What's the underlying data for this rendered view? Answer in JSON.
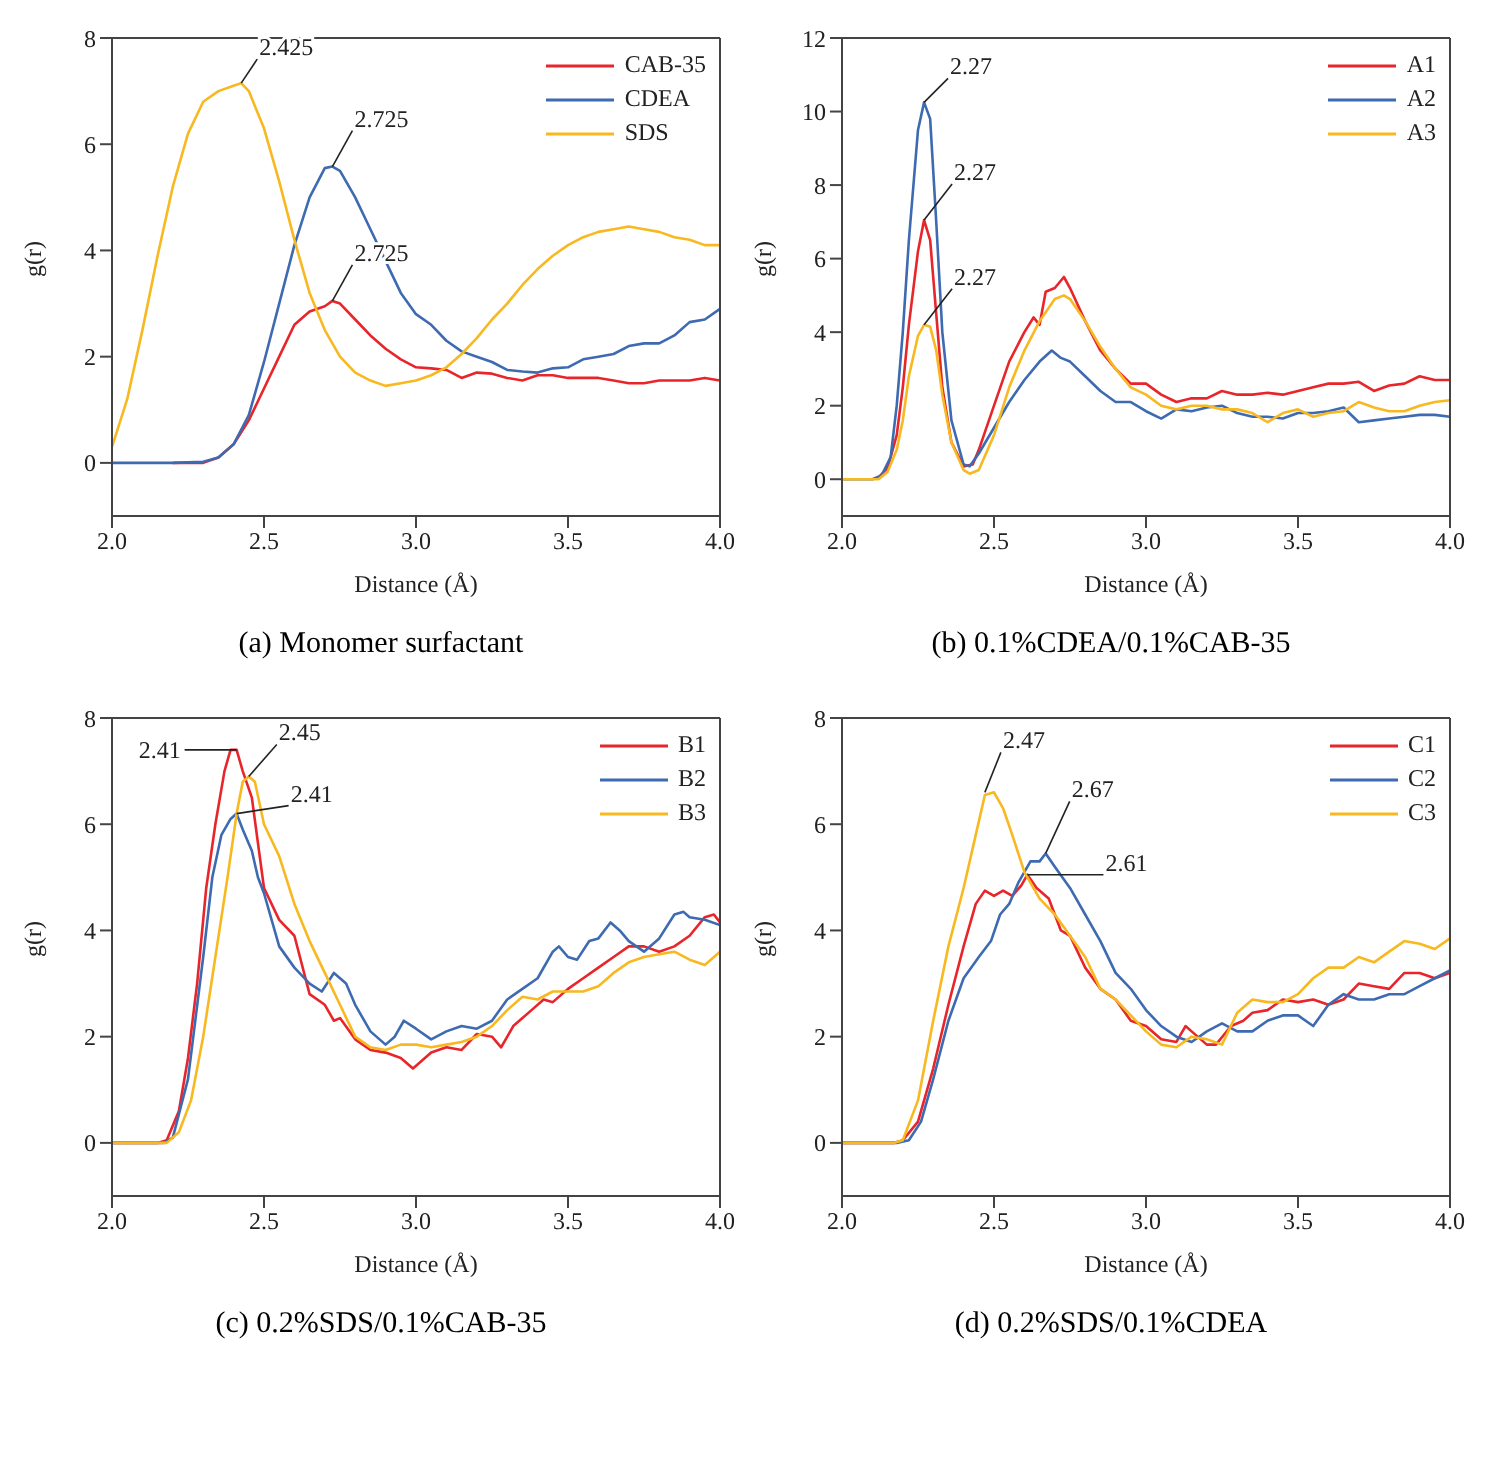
{
  "chart_data": [
    {
      "type": "line",
      "title": "(a) Monomer surfactant",
      "xlabel": "Distance (Å)",
      "ylabel": "g(r)",
      "xlim": [
        2.0,
        4.0
      ],
      "ylim": [
        -1,
        8
      ],
      "xticks": [
        {
          "value": 2,
          "label": "2.0"
        },
        {
          "value": 2.5,
          "label": "2.5"
        },
        {
          "value": 3,
          "label": "3.0"
        },
        {
          "value": 3.5,
          "label": "3.5"
        },
        {
          "value": 4,
          "label": "4.0"
        }
      ],
      "yticks": [
        0,
        2,
        4,
        6,
        8
      ],
      "legend": "top right",
      "marker": "none",
      "line_style": "solid",
      "annotations": [
        {
          "text": "2.425",
          "x": 2.425,
          "y": 7.15
        },
        {
          "text": "2.725",
          "x": 2.725,
          "y": 5.58
        },
        {
          "text": "2.725",
          "x": 2.725,
          "y": 3.05
        }
      ],
      "series": [
        {
          "name": "CAB-35",
          "color": "#e8252a",
          "x": [
            2.2,
            2.3,
            2.35,
            2.4,
            2.45,
            2.5,
            2.55,
            2.6,
            2.65,
            2.7,
            2.725,
            2.75,
            2.8,
            2.85,
            2.9,
            2.95,
            3.0,
            3.05,
            3.1,
            3.15,
            3.2,
            3.25,
            3.3,
            3.35,
            3.4,
            3.45,
            3.5,
            3.55,
            3.6,
            3.65,
            3.7,
            3.75,
            3.8,
            3.85,
            3.9,
            3.95,
            4.0
          ],
          "values": [
            0,
            0,
            0.1,
            0.35,
            0.8,
            1.4,
            2.0,
            2.6,
            2.85,
            2.95,
            3.05,
            3.0,
            2.7,
            2.4,
            2.15,
            1.95,
            1.8,
            1.78,
            1.75,
            1.6,
            1.7,
            1.68,
            1.6,
            1.55,
            1.65,
            1.65,
            1.6,
            1.6,
            1.6,
            1.55,
            1.5,
            1.5,
            1.55,
            1.55,
            1.55,
            1.6,
            1.55
          ]
        },
        {
          "name": "CDEA",
          "color": "#3d6ab0",
          "x": [
            2.0,
            2.1,
            2.2,
            2.3,
            2.35,
            2.4,
            2.45,
            2.5,
            2.55,
            2.6,
            2.65,
            2.7,
            2.725,
            2.75,
            2.8,
            2.85,
            2.9,
            2.95,
            3.0,
            3.05,
            3.1,
            3.15,
            3.2,
            3.25,
            3.3,
            3.35,
            3.4,
            3.45,
            3.5,
            3.55,
            3.6,
            3.65,
            3.7,
            3.75,
            3.8,
            3.85,
            3.9,
            3.95,
            4.0
          ],
          "values": [
            0,
            0,
            0,
            0.02,
            0.1,
            0.35,
            0.9,
            1.9,
            3.0,
            4.1,
            5.0,
            5.55,
            5.58,
            5.5,
            5.0,
            4.4,
            3.8,
            3.2,
            2.8,
            2.6,
            2.3,
            2.1,
            2.0,
            1.9,
            1.75,
            1.72,
            1.7,
            1.78,
            1.8,
            1.95,
            2.0,
            2.05,
            2.2,
            2.25,
            2.25,
            2.4,
            2.65,
            2.7,
            2.9
          ]
        },
        {
          "name": "SDS",
          "color": "#f8b820",
          "x": [
            2.0,
            2.05,
            2.1,
            2.15,
            2.2,
            2.25,
            2.3,
            2.35,
            2.4,
            2.425,
            2.45,
            2.5,
            2.55,
            2.6,
            2.65,
            2.7,
            2.75,
            2.8,
            2.85,
            2.9,
            2.95,
            3.0,
            3.05,
            3.1,
            3.15,
            3.2,
            3.25,
            3.3,
            3.35,
            3.4,
            3.45,
            3.5,
            3.55,
            3.6,
            3.65,
            3.7,
            3.75,
            3.8,
            3.85,
            3.9,
            3.95,
            4.0
          ],
          "values": [
            0.3,
            1.2,
            2.5,
            3.9,
            5.2,
            6.2,
            6.8,
            7.0,
            7.1,
            7.15,
            7.0,
            6.3,
            5.3,
            4.2,
            3.2,
            2.5,
            2.0,
            1.7,
            1.55,
            1.45,
            1.5,
            1.55,
            1.65,
            1.8,
            2.05,
            2.35,
            2.7,
            3.0,
            3.35,
            3.65,
            3.9,
            4.1,
            4.25,
            4.35,
            4.4,
            4.45,
            4.4,
            4.35,
            4.25,
            4.2,
            4.1,
            4.1
          ]
        }
      ]
    },
    {
      "type": "line",
      "title": "(b) 0.1%CDEA/0.1%CAB-35",
      "xlabel": "Distance (Å)",
      "ylabel": "g(r)",
      "xlim": [
        2.0,
        4.0
      ],
      "ylim": [
        -1,
        12
      ],
      "xticks": [
        {
          "value": 2,
          "label": "2.0"
        },
        {
          "value": 2.5,
          "label": "2.5"
        },
        {
          "value": 3,
          "label": "3.0"
        },
        {
          "value": 3.5,
          "label": "3.5"
        },
        {
          "value": 4,
          "label": "4.0"
        }
      ],
      "yticks": [
        0,
        2,
        4,
        6,
        8,
        10,
        12
      ],
      "legend": "top right",
      "marker": "none",
      "line_style": "solid",
      "annotations": [
        {
          "text": "2.27",
          "x": 2.27,
          "y": 10.25
        },
        {
          "text": "2.27",
          "x": 2.27,
          "y": 7.05
        },
        {
          "text": "2.27",
          "x": 2.27,
          "y": 4.2
        }
      ],
      "series": [
        {
          "name": "A1",
          "color": "#e8252a",
          "x": [
            2.12,
            2.15,
            2.18,
            2.2,
            2.22,
            2.25,
            2.27,
            2.29,
            2.31,
            2.33,
            2.36,
            2.4,
            2.43,
            2.45,
            2.5,
            2.55,
            2.6,
            2.63,
            2.65,
            2.67,
            2.7,
            2.73,
            2.75,
            2.8,
            2.85,
            2.9,
            2.95,
            3.0,
            3.05,
            3.1,
            3.15,
            3.2,
            3.25,
            3.3,
            3.35,
            3.4,
            3.45,
            3.5,
            3.55,
            3.6,
            3.65,
            3.7,
            3.75,
            3.8,
            3.85,
            3.9,
            3.95,
            4.0
          ],
          "values": [
            0.05,
            0.3,
            1.2,
            2.5,
            4.2,
            6.2,
            7.05,
            6.5,
            4.5,
            2.5,
            1.0,
            0.35,
            0.4,
            0.8,
            2.0,
            3.2,
            4.0,
            4.4,
            4.2,
            5.1,
            5.2,
            5.5,
            5.2,
            4.3,
            3.5,
            3.0,
            2.6,
            2.6,
            2.3,
            2.1,
            2.2,
            2.2,
            2.4,
            2.3,
            2.3,
            2.35,
            2.3,
            2.4,
            2.5,
            2.6,
            2.6,
            2.65,
            2.4,
            2.55,
            2.6,
            2.8,
            2.7,
            2.7
          ]
        },
        {
          "name": "A2",
          "color": "#3d6ab0",
          "x": [
            2.0,
            2.1,
            2.13,
            2.16,
            2.18,
            2.2,
            2.22,
            2.25,
            2.27,
            2.29,
            2.31,
            2.33,
            2.36,
            2.4,
            2.42,
            2.45,
            2.5,
            2.55,
            2.6,
            2.65,
            2.69,
            2.72,
            2.75,
            2.8,
            2.85,
            2.9,
            2.95,
            3.0,
            3.05,
            3.1,
            3.15,
            3.2,
            3.25,
            3.3,
            3.35,
            3.4,
            3.45,
            3.5,
            3.55,
            3.6,
            3.65,
            3.7,
            3.75,
            3.8,
            3.85,
            3.9,
            3.95,
            4.0
          ],
          "values": [
            0,
            0,
            0.1,
            0.6,
            2.0,
            4.0,
            6.5,
            9.5,
            10.25,
            9.8,
            7.0,
            4.0,
            1.6,
            0.4,
            0.35,
            0.7,
            1.4,
            2.1,
            2.7,
            3.2,
            3.5,
            3.3,
            3.2,
            2.8,
            2.4,
            2.1,
            2.1,
            1.85,
            1.65,
            1.9,
            1.85,
            1.95,
            2.0,
            1.8,
            1.7,
            1.7,
            1.65,
            1.8,
            1.8,
            1.85,
            1.95,
            1.55,
            1.6,
            1.65,
            1.7,
            1.75,
            1.75,
            1.7
          ]
        },
        {
          "name": "A3",
          "color": "#f8b820",
          "x": [
            2.0,
            2.12,
            2.15,
            2.18,
            2.2,
            2.22,
            2.25,
            2.27,
            2.29,
            2.31,
            2.33,
            2.36,
            2.4,
            2.42,
            2.45,
            2.5,
            2.55,
            2.6,
            2.65,
            2.7,
            2.73,
            2.75,
            2.8,
            2.85,
            2.9,
            2.95,
            3.0,
            3.05,
            3.1,
            3.15,
            3.2,
            3.25,
            3.3,
            3.35,
            3.4,
            3.45,
            3.5,
            3.55,
            3.6,
            3.65,
            3.7,
            3.75,
            3.8,
            3.85,
            3.9,
            3.95,
            4.0
          ],
          "values": [
            0,
            0,
            0.2,
            0.8,
            1.6,
            2.8,
            3.9,
            4.2,
            4.15,
            3.5,
            2.3,
            1.0,
            0.25,
            0.15,
            0.25,
            1.2,
            2.5,
            3.5,
            4.3,
            4.9,
            5.0,
            4.9,
            4.3,
            3.6,
            3.0,
            2.5,
            2.3,
            2.0,
            1.9,
            2.0,
            2.0,
            1.9,
            1.9,
            1.8,
            1.55,
            1.8,
            1.9,
            1.7,
            1.8,
            1.85,
            2.1,
            1.95,
            1.85,
            1.85,
            2.0,
            2.1,
            2.15
          ]
        }
      ]
    },
    {
      "type": "line",
      "title": "(c) 0.2%SDS/0.1%CAB-35",
      "xlabel": "Distance (Å)",
      "ylabel": "g(r)",
      "xlim": [
        2.0,
        4.0
      ],
      "ylim": [
        -1,
        8
      ],
      "xticks": [
        {
          "value": 2,
          "label": "2.0"
        },
        {
          "value": 2.5,
          "label": "2.5"
        },
        {
          "value": 3,
          "label": "3.0"
        },
        {
          "value": 3.5,
          "label": "3.5"
        },
        {
          "value": 4,
          "label": "4.0"
        }
      ],
      "yticks": [
        0,
        2,
        4,
        6,
        8
      ],
      "legend": "top right",
      "marker": "none",
      "line_style": "solid",
      "annotations": [
        {
          "text": "2.41",
          "x": 2.41,
          "y": 7.4
        },
        {
          "text": "2.45",
          "x": 2.45,
          "y": 6.9
        },
        {
          "text": "2.41",
          "x": 2.41,
          "y": 6.2
        }
      ],
      "series": [
        {
          "name": "B1",
          "color": "#e8252a",
          "x": [
            2.0,
            2.15,
            2.18,
            2.22,
            2.25,
            2.28,
            2.31,
            2.34,
            2.37,
            2.39,
            2.41,
            2.43,
            2.46,
            2.5,
            2.55,
            2.6,
            2.65,
            2.7,
            2.73,
            2.75,
            2.8,
            2.85,
            2.9,
            2.95,
            2.99,
            3.05,
            3.1,
            3.15,
            3.2,
            3.25,
            3.28,
            3.32,
            3.38,
            3.42,
            3.45,
            3.5,
            3.55,
            3.6,
            3.65,
            3.7,
            3.75,
            3.8,
            3.85,
            3.9,
            3.95,
            3.98,
            4.0
          ],
          "values": [
            0,
            0,
            0.05,
            0.6,
            1.6,
            3.0,
            4.8,
            6.0,
            7.0,
            7.4,
            7.4,
            7.0,
            6.5,
            4.8,
            4.2,
            3.9,
            2.8,
            2.6,
            2.3,
            2.35,
            1.95,
            1.75,
            1.7,
            1.6,
            1.4,
            1.7,
            1.8,
            1.75,
            2.05,
            2.0,
            1.8,
            2.2,
            2.5,
            2.7,
            2.65,
            2.9,
            3.1,
            3.3,
            3.5,
            3.7,
            3.7,
            3.6,
            3.7,
            3.9,
            4.25,
            4.3,
            4.15
          ]
        },
        {
          "name": "B2",
          "color": "#3d6ab0",
          "x": [
            2.0,
            2.17,
            2.2,
            2.25,
            2.3,
            2.33,
            2.36,
            2.39,
            2.41,
            2.43,
            2.46,
            2.48,
            2.5,
            2.55,
            2.6,
            2.65,
            2.69,
            2.73,
            2.77,
            2.8,
            2.85,
            2.9,
            2.93,
            2.96,
            3.0,
            3.05,
            3.1,
            3.15,
            3.2,
            3.25,
            3.3,
            3.35,
            3.4,
            3.45,
            3.47,
            3.5,
            3.53,
            3.57,
            3.6,
            3.64,
            3.67,
            3.7,
            3.75,
            3.8,
            3.85,
            3.88,
            3.9,
            3.95,
            4.0
          ],
          "values": [
            0,
            0,
            0.1,
            1.2,
            3.5,
            5.0,
            5.8,
            6.1,
            6.2,
            5.9,
            5.5,
            5.0,
            4.7,
            3.7,
            3.3,
            3.0,
            2.85,
            3.2,
            3.0,
            2.6,
            2.1,
            1.85,
            2.0,
            2.3,
            2.15,
            1.95,
            2.1,
            2.2,
            2.15,
            2.3,
            2.7,
            2.9,
            3.1,
            3.6,
            3.7,
            3.5,
            3.45,
            3.8,
            3.85,
            4.15,
            4.0,
            3.8,
            3.6,
            3.85,
            4.3,
            4.35,
            4.25,
            4.2,
            4.1
          ]
        },
        {
          "name": "B3",
          "color": "#f8b820",
          "x": [
            2.0,
            2.18,
            2.22,
            2.26,
            2.3,
            2.34,
            2.38,
            2.41,
            2.43,
            2.45,
            2.47,
            2.5,
            2.55,
            2.6,
            2.65,
            2.7,
            2.75,
            2.8,
            2.85,
            2.9,
            2.95,
            3.0,
            3.05,
            3.1,
            3.15,
            3.2,
            3.25,
            3.3,
            3.35,
            3.4,
            3.45,
            3.5,
            3.55,
            3.6,
            3.65,
            3.7,
            3.75,
            3.8,
            3.85,
            3.9,
            3.95,
            4.0
          ],
          "values": [
            0,
            0,
            0.2,
            0.8,
            2.0,
            3.5,
            5.0,
            6.2,
            6.8,
            6.9,
            6.8,
            6.0,
            5.4,
            4.5,
            3.8,
            3.2,
            2.6,
            2.0,
            1.8,
            1.75,
            1.85,
            1.85,
            1.8,
            1.85,
            1.9,
            2.0,
            2.2,
            2.5,
            2.75,
            2.7,
            2.85,
            2.85,
            2.85,
            2.95,
            3.2,
            3.4,
            3.5,
            3.55,
            3.6,
            3.45,
            3.35,
            3.6
          ]
        }
      ]
    },
    {
      "type": "line",
      "title": "(d) 0.2%SDS/0.1%CDEA",
      "xlabel": "Distance (Å)",
      "ylabel": "g(r)",
      "xlim": [
        2.0,
        4.0
      ],
      "ylim": [
        -1,
        8
      ],
      "xticks": [
        {
          "value": 2,
          "label": "2.0"
        },
        {
          "value": 2.5,
          "label": "2.5"
        },
        {
          "value": 3,
          "label": "3.0"
        },
        {
          "value": 3.5,
          "label": "3.5"
        },
        {
          "value": 4,
          "label": "4.0"
        }
      ],
      "yticks": [
        0,
        2,
        4,
        6,
        8
      ],
      "legend": "top right",
      "marker": "none",
      "line_style": "solid",
      "annotations": [
        {
          "text": "2.47",
          "x": 2.47,
          "y": 6.6
        },
        {
          "text": "2.67",
          "x": 2.67,
          "y": 5.45
        },
        {
          "text": "2.61",
          "x": 2.61,
          "y": 5.05
        }
      ],
      "series": [
        {
          "name": "C1",
          "color": "#e8252a",
          "x": [
            2.0,
            2.17,
            2.2,
            2.25,
            2.3,
            2.35,
            2.4,
            2.44,
            2.47,
            2.5,
            2.53,
            2.56,
            2.59,
            2.61,
            2.64,
            2.68,
            2.72,
            2.75,
            2.8,
            2.85,
            2.9,
            2.95,
            3.0,
            3.05,
            3.1,
            3.13,
            3.15,
            3.2,
            3.23,
            3.28,
            3.32,
            3.35,
            3.4,
            3.45,
            3.5,
            3.55,
            3.6,
            3.65,
            3.7,
            3.75,
            3.8,
            3.85,
            3.9,
            3.95,
            4.0
          ],
          "values": [
            0,
            0,
            0.05,
            0.4,
            1.4,
            2.6,
            3.7,
            4.5,
            4.75,
            4.65,
            4.75,
            4.65,
            4.85,
            5.05,
            4.8,
            4.6,
            4.0,
            3.9,
            3.3,
            2.9,
            2.7,
            2.3,
            2.2,
            1.95,
            1.9,
            2.2,
            2.1,
            1.85,
            1.85,
            2.2,
            2.3,
            2.45,
            2.5,
            2.7,
            2.65,
            2.7,
            2.6,
            2.7,
            3.0,
            2.95,
            2.9,
            3.2,
            3.2,
            3.1,
            3.2
          ]
        },
        {
          "name": "C2",
          "color": "#3d6ab0",
          "x": [
            2.0,
            2.18,
            2.22,
            2.26,
            2.3,
            2.35,
            2.4,
            2.45,
            2.49,
            2.52,
            2.55,
            2.58,
            2.62,
            2.65,
            2.67,
            2.7,
            2.75,
            2.8,
            2.85,
            2.9,
            2.95,
            3.0,
            3.05,
            3.1,
            3.15,
            3.2,
            3.25,
            3.3,
            3.35,
            3.4,
            3.45,
            3.5,
            3.55,
            3.6,
            3.65,
            3.7,
            3.75,
            3.8,
            3.85,
            3.9,
            3.95,
            4.0
          ],
          "values": [
            0,
            0,
            0.05,
            0.4,
            1.2,
            2.3,
            3.1,
            3.5,
            3.8,
            4.3,
            4.5,
            4.9,
            5.3,
            5.3,
            5.45,
            5.2,
            4.8,
            4.3,
            3.8,
            3.2,
            2.9,
            2.5,
            2.2,
            2.0,
            1.9,
            2.1,
            2.25,
            2.1,
            2.1,
            2.3,
            2.4,
            2.4,
            2.2,
            2.6,
            2.8,
            2.7,
            2.7,
            2.8,
            2.8,
            2.95,
            3.1,
            3.25
          ]
        },
        {
          "name": "C3",
          "color": "#f8b820",
          "x": [
            2.0,
            2.17,
            2.2,
            2.25,
            2.3,
            2.35,
            2.4,
            2.44,
            2.47,
            2.5,
            2.53,
            2.56,
            2.6,
            2.65,
            2.7,
            2.75,
            2.8,
            2.85,
            2.9,
            2.95,
            3.0,
            3.05,
            3.1,
            3.15,
            3.2,
            3.25,
            3.3,
            3.35,
            3.4,
            3.45,
            3.5,
            3.55,
            3.6,
            3.65,
            3.7,
            3.75,
            3.8,
            3.85,
            3.9,
            3.95,
            4.0
          ],
          "values": [
            0,
            0,
            0.05,
            0.8,
            2.3,
            3.7,
            4.8,
            5.8,
            6.55,
            6.6,
            6.3,
            5.8,
            5.1,
            4.6,
            4.3,
            3.9,
            3.5,
            2.9,
            2.7,
            2.4,
            2.1,
            1.85,
            1.8,
            2.0,
            1.95,
            1.85,
            2.45,
            2.7,
            2.65,
            2.65,
            2.8,
            3.1,
            3.3,
            3.3,
            3.5,
            3.4,
            3.6,
            3.8,
            3.75,
            3.65,
            3.85
          ]
        }
      ]
    }
  ]
}
